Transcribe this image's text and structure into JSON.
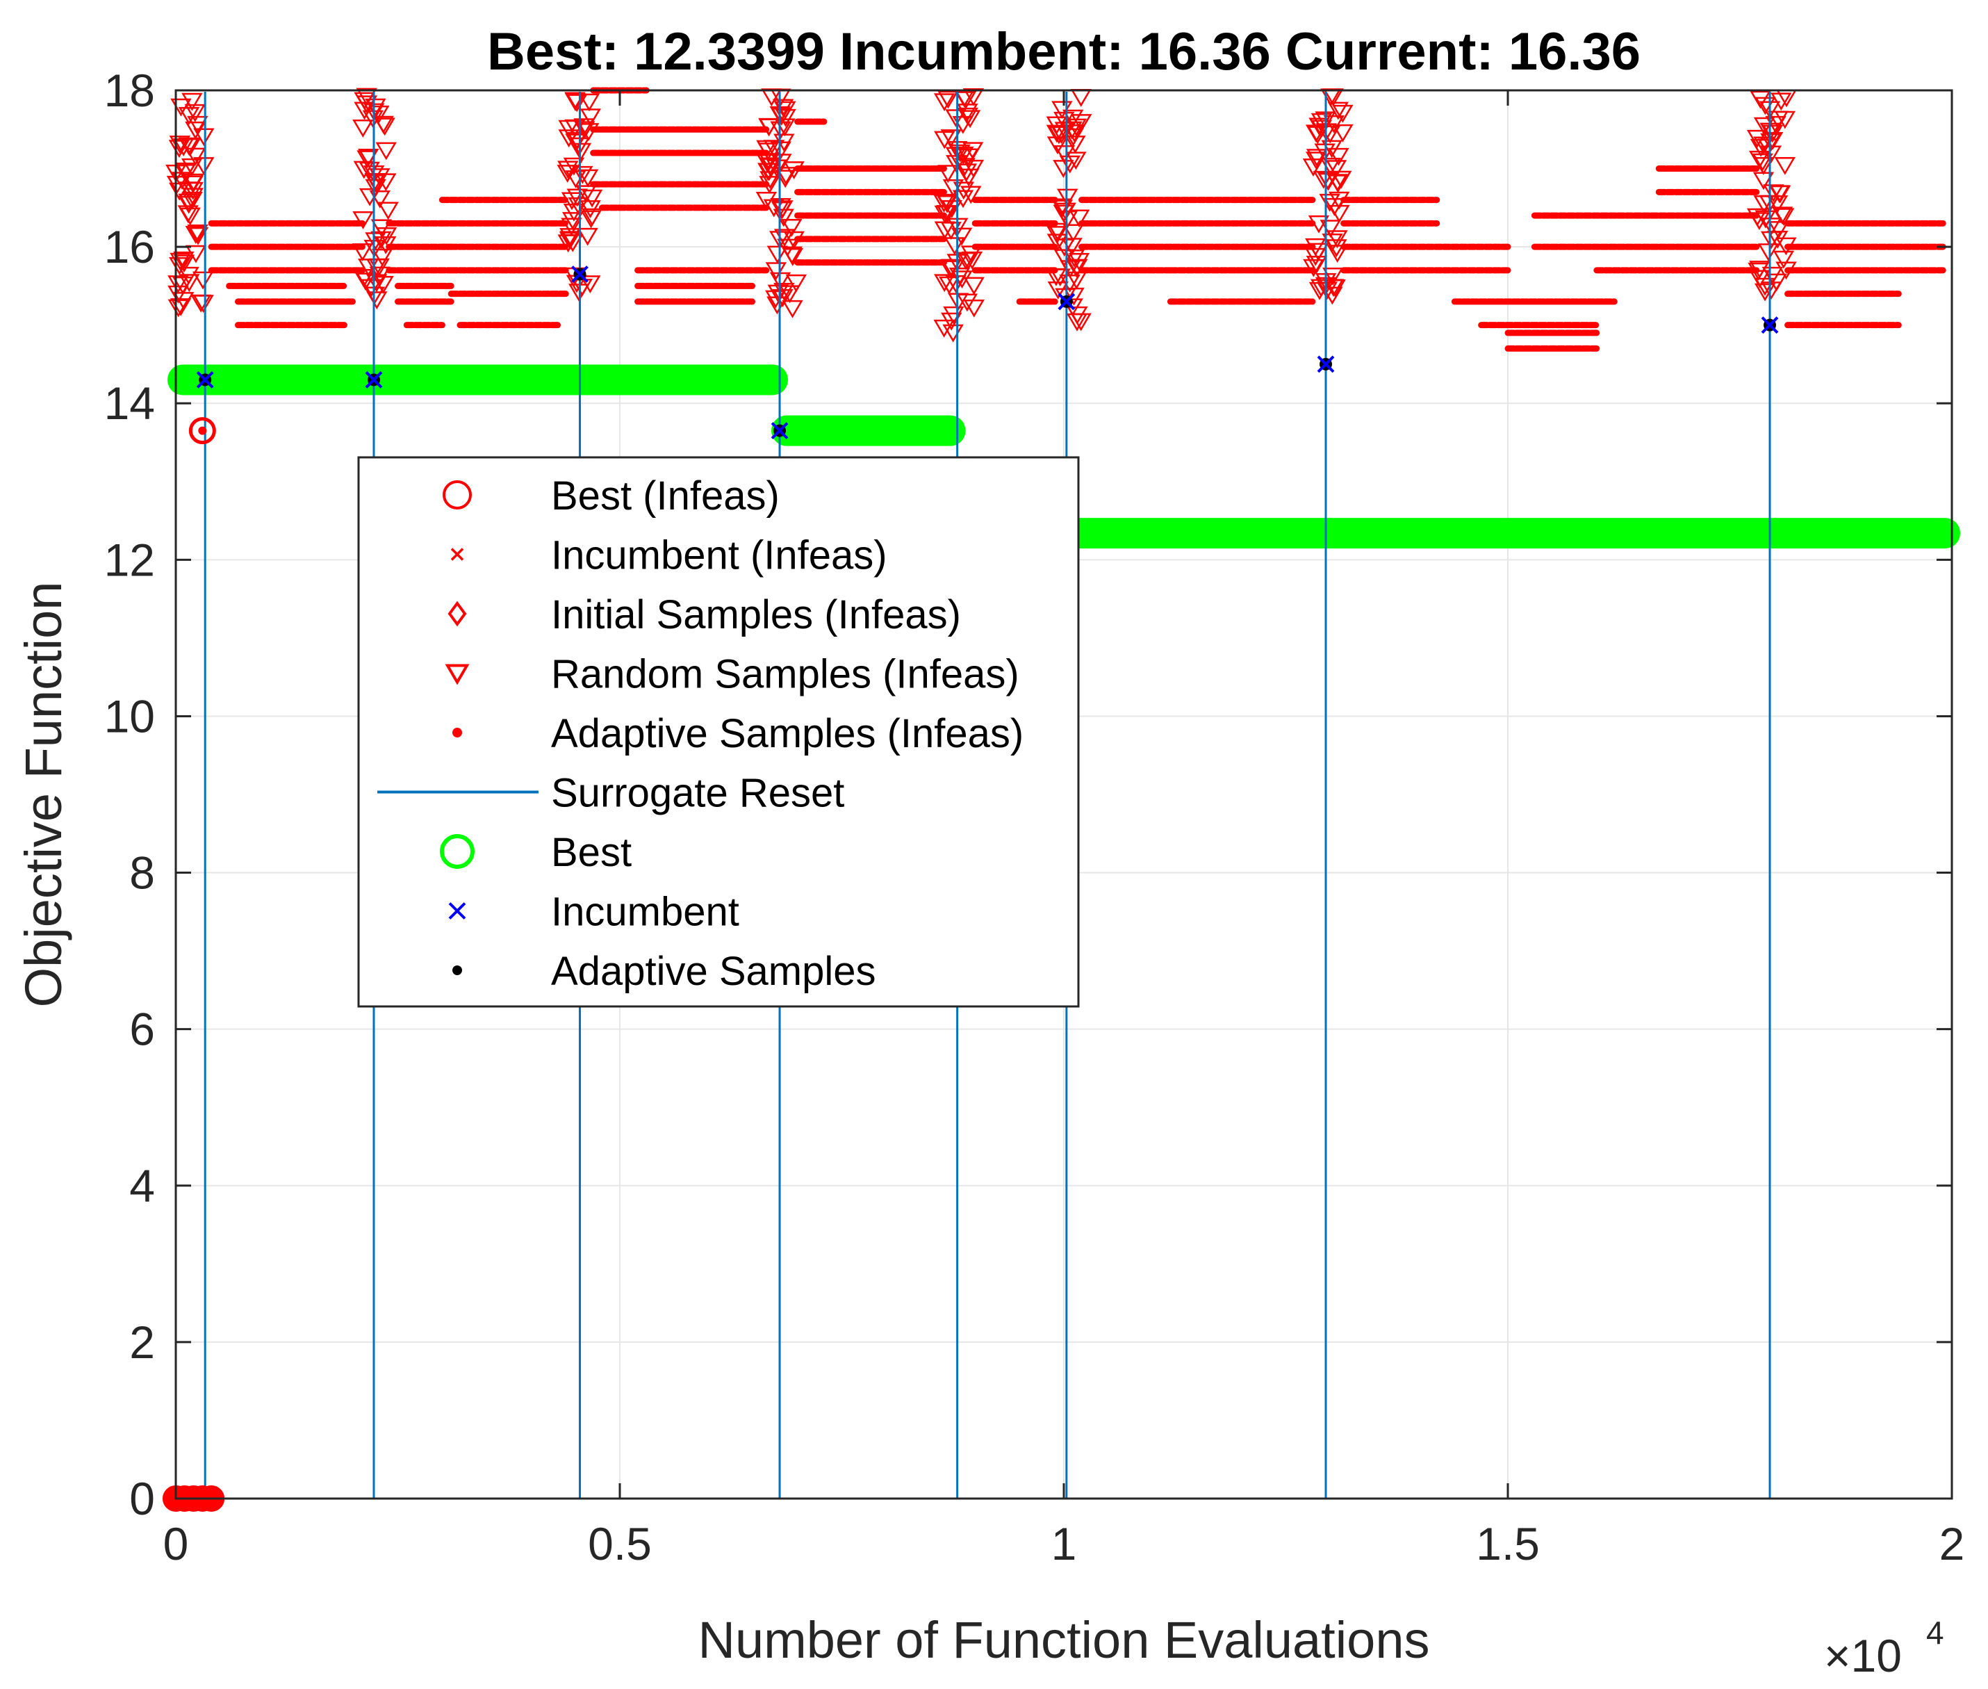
{
  "chart_data": {
    "type": "scatter",
    "title": "Best: 12.3399 Incumbent: 16.36 Current: 16.36",
    "xlabel": "Number of Function Evaluations",
    "ylabel": "Objective Function",
    "x_exponent_label": "×10",
    "x_exponent_power": "4",
    "xlim": [
      0,
      20000
    ],
    "ylim": [
      0,
      18
    ],
    "x_ticks": [
      0,
      5000,
      10000,
      15000,
      20000
    ],
    "x_tick_labels": [
      "0",
      "0.5",
      "1",
      "1.5",
      "2"
    ],
    "y_ticks": [
      0,
      2,
      4,
      6,
      8,
      10,
      12,
      14,
      16,
      18
    ],
    "y_tick_labels": [
      "0",
      "2",
      "4",
      "6",
      "8",
      "10",
      "12",
      "14",
      "16",
      "18"
    ],
    "grid": true,
    "legend_position": "inside-upper-left",
    "colors": {
      "infeasible": "#ff0000",
      "best": "#00ff00",
      "incumbent": "#0000ff",
      "adaptive": "#000000",
      "reset": "#0072bd"
    },
    "legend": [
      {
        "label": "Best (Infeas)",
        "marker": "circle",
        "color": "#ff0000"
      },
      {
        "label": "Incumbent (Infeas)",
        "marker": "x",
        "color": "#ff0000"
      },
      {
        "label": "Initial Samples (Infeas)",
        "marker": "diamond",
        "color": "#ff0000"
      },
      {
        "label": "Random Samples (Infeas)",
        "marker": "triangle-down",
        "color": "#ff0000"
      },
      {
        "label": "Adaptive Samples (Infeas)",
        "marker": "dot",
        "color": "#ff0000"
      },
      {
        "label": "Surrogate Reset",
        "marker": "line",
        "color": "#0072bd"
      },
      {
        "label": "Best",
        "marker": "circle",
        "color": "#00ff00"
      },
      {
        "label": "Incumbent",
        "marker": "x",
        "color": "#0000ff"
      },
      {
        "label": "Adaptive Samples",
        "marker": "dot",
        "color": "#000000"
      }
    ],
    "series": [
      {
        "name": "Surrogate Reset",
        "type": "vline",
        "x": [
          330,
          2230,
          4550,
          6800,
          8800,
          10030,
          12950,
          17950
        ]
      },
      {
        "name": "Best",
        "type": "step",
        "segments": [
          {
            "x0": 0,
            "x1": 6800,
            "y": 14.3
          },
          {
            "x0": 6800,
            "x1": 8800,
            "y": 13.65
          },
          {
            "x0": 8800,
            "x1": 20000,
            "y": 12.3399
          }
        ]
      },
      {
        "name": "Best (Infeas)",
        "type": "markers",
        "points": [
          [
            300,
            13.65
          ],
          [
            0,
            0
          ],
          [
            100,
            0
          ],
          [
            200,
            0
          ],
          [
            300,
            0
          ],
          [
            400,
            0
          ]
        ]
      },
      {
        "name": "Incumbent",
        "type": "markers",
        "points": [
          [
            330,
            14.3
          ],
          [
            2230,
            14.3
          ],
          [
            4550,
            15.65
          ],
          [
            6800,
            13.65
          ],
          [
            10030,
            15.3
          ],
          [
            12950,
            14.5
          ],
          [
            17950,
            15.0
          ]
        ]
      },
      {
        "name": "Random Samples (Infeas)",
        "type": "bands",
        "bands": [
          {
            "x0": 0,
            "x1": 330,
            "y0": 15.2,
            "y1": 18
          },
          {
            "x0": 2100,
            "x1": 2400,
            "y0": 15.3,
            "y1": 18
          },
          {
            "x0": 4400,
            "x1": 4700,
            "y0": 15.4,
            "y1": 18
          },
          {
            "x0": 6650,
            "x1": 7000,
            "y0": 15.2,
            "y1": 18
          },
          {
            "x0": 8650,
            "x1": 9000,
            "y0": 14.9,
            "y1": 18
          },
          {
            "x0": 9900,
            "x1": 10200,
            "y0": 15.0,
            "y1": 18
          },
          {
            "x0": 12800,
            "x1": 13150,
            "y0": 15.3,
            "y1": 18
          },
          {
            "x0": 17800,
            "x1": 18150,
            "y0": 15.4,
            "y1": 18
          }
        ]
      },
      {
        "name": "Adaptive Samples (Infeas)",
        "type": "horizontal-runs",
        "runs": [
          {
            "x0": 400,
            "x1": 2100,
            "y": 16.3
          },
          {
            "x0": 400,
            "x1": 2100,
            "y": 16.0
          },
          {
            "x0": 400,
            "x1": 2100,
            "y": 15.7
          },
          {
            "x0": 600,
            "x1": 1900,
            "y": 15.5
          },
          {
            "x0": 700,
            "x1": 2000,
            "y": 15.3
          },
          {
            "x0": 700,
            "x1": 1900,
            "y": 15.0
          },
          {
            "x0": 2400,
            "x1": 3000,
            "y": 16.3
          },
          {
            "x0": 2400,
            "x1": 3100,
            "y": 16.0
          },
          {
            "x0": 2400,
            "x1": 3100,
            "y": 15.7
          },
          {
            "x0": 2500,
            "x1": 3100,
            "y": 15.5
          },
          {
            "x0": 2500,
            "x1": 3100,
            "y": 15.3
          },
          {
            "x0": 2600,
            "x1": 3000,
            "y": 15.0
          },
          {
            "x0": 3000,
            "x1": 4400,
            "y": 16.6
          },
          {
            "x0": 3000,
            "x1": 4400,
            "y": 16.3
          },
          {
            "x0": 3000,
            "x1": 4400,
            "y": 16.0
          },
          {
            "x0": 3100,
            "x1": 4400,
            "y": 15.7
          },
          {
            "x0": 3100,
            "x1": 4400,
            "y": 15.4
          },
          {
            "x0": 3200,
            "x1": 4300,
            "y": 15.0
          },
          {
            "x0": 4700,
            "x1": 5300,
            "y": 18.0
          },
          {
            "x0": 4700,
            "x1": 6650,
            "y": 17.5
          },
          {
            "x0": 4700,
            "x1": 6650,
            "y": 17.2
          },
          {
            "x0": 4700,
            "x1": 6650,
            "y": 16.8
          },
          {
            "x0": 4800,
            "x1": 6650,
            "y": 16.5
          },
          {
            "x0": 5200,
            "x1": 6650,
            "y": 15.7
          },
          {
            "x0": 5200,
            "x1": 6500,
            "y": 15.5
          },
          {
            "x0": 5200,
            "x1": 6500,
            "y": 15.3
          },
          {
            "x0": 7000,
            "x1": 7300,
            "y": 17.6
          },
          {
            "x0": 7000,
            "x1": 8650,
            "y": 17.0
          },
          {
            "x0": 7000,
            "x1": 8650,
            "y": 16.7
          },
          {
            "x0": 7000,
            "x1": 8650,
            "y": 16.4
          },
          {
            "x0": 7000,
            "x1": 8650,
            "y": 16.1
          },
          {
            "x0": 7000,
            "x1": 8650,
            "y": 15.8
          },
          {
            "x0": 9000,
            "x1": 9900,
            "y": 16.6
          },
          {
            "x0": 9000,
            "x1": 9900,
            "y": 16.3
          },
          {
            "x0": 9000,
            "x1": 9900,
            "y": 16.0
          },
          {
            "x0": 9000,
            "x1": 9900,
            "y": 15.7
          },
          {
            "x0": 9500,
            "x1": 9900,
            "y": 15.3
          },
          {
            "x0": 10200,
            "x1": 12800,
            "y": 16.6
          },
          {
            "x0": 10200,
            "x1": 12800,
            "y": 16.3
          },
          {
            "x0": 10200,
            "x1": 12800,
            "y": 16.0
          },
          {
            "x0": 10200,
            "x1": 11200,
            "y": 15.7
          },
          {
            "x0": 11200,
            "x1": 12800,
            "y": 15.7
          },
          {
            "x0": 11200,
            "x1": 12800,
            "y": 15.3
          },
          {
            "x0": 13150,
            "x1": 14200,
            "y": 16.6
          },
          {
            "x0": 13150,
            "x1": 14200,
            "y": 16.3
          },
          {
            "x0": 13150,
            "x1": 15000,
            "y": 16.0
          },
          {
            "x0": 13150,
            "x1": 15000,
            "y": 15.7
          },
          {
            "x0": 14400,
            "x1": 16200,
            "y": 15.3
          },
          {
            "x0": 14700,
            "x1": 16000,
            "y": 15.0
          },
          {
            "x0": 15000,
            "x1": 16000,
            "y": 14.9
          },
          {
            "x0": 15000,
            "x1": 16000,
            "y": 14.7
          },
          {
            "x0": 15300,
            "x1": 17800,
            "y": 16.4
          },
          {
            "x0": 15300,
            "x1": 17800,
            "y": 16.0
          },
          {
            "x0": 16000,
            "x1": 17800,
            "y": 15.7
          },
          {
            "x0": 16700,
            "x1": 17800,
            "y": 17.0
          },
          {
            "x0": 16700,
            "x1": 17800,
            "y": 16.7
          },
          {
            "x0": 18150,
            "x1": 19900,
            "y": 16.3
          },
          {
            "x0": 18150,
            "x1": 19900,
            "y": 16.0
          },
          {
            "x0": 18150,
            "x1": 19900,
            "y": 15.7
          },
          {
            "x0": 18150,
            "x1": 19400,
            "y": 15.4
          },
          {
            "x0": 18150,
            "x1": 19400,
            "y": 15.0
          }
        ]
      }
    ]
  }
}
